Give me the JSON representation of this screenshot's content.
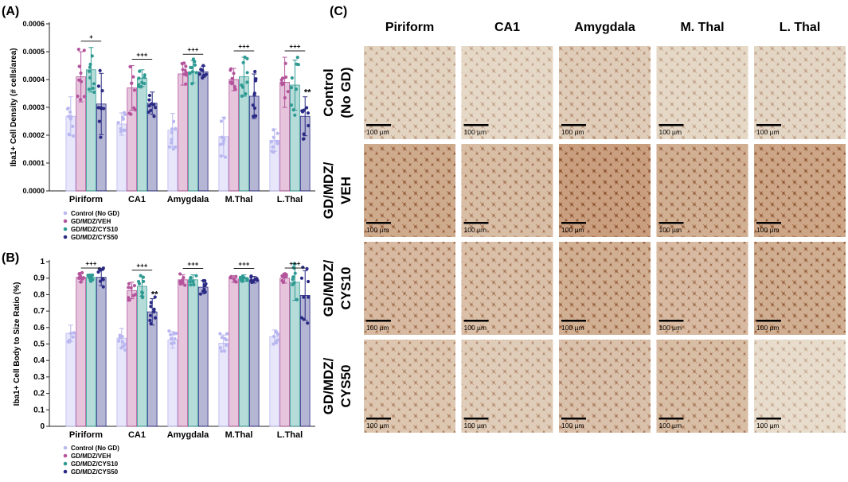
{
  "panel_labels": {
    "a": "(A)",
    "b": "(B)",
    "c": "(C)"
  },
  "colors": {
    "control": "#b9b7f0",
    "veh": "#b4559c",
    "cys10": "#2f9a93",
    "cys50": "#2a2a84"
  },
  "legend": [
    "Control (No GD)",
    "GD/MDZ/VEH",
    "GD/MDZ/CYS10",
    "GD/MDZ/CYS50"
  ],
  "chart_data": [
    {
      "type": "bar",
      "panel": "A",
      "ylabel": "Iba1+ Cell Density (# cells/area)",
      "xlabel": "",
      "categories": [
        "Piriform",
        "CA1",
        "Amygdala",
        "M.Thal",
        "L.Thal"
      ],
      "ylim": [
        0,
        0.0006
      ],
      "yticks": [
        0,
        0.0001,
        0.0002,
        0.0003,
        0.0004,
        0.0005,
        0.0006
      ],
      "ytick_labels": [
        "0.0000",
        "0.0001",
        "0.0002",
        "0.0003",
        "0.0004",
        "0.0005",
        "0.0006"
      ],
      "series": [
        {
          "name": "Control (No GD)",
          "values": [
            0.000268,
            0.00024,
            0.000218,
            0.000195,
            0.000182
          ],
          "errors": [
            7e-05,
            4e-05,
            6e-05,
            7e-05,
            4e-05
          ]
        },
        {
          "name": "GD/MDZ/VEH",
          "values": [
            0.00041,
            0.00037,
            0.00042,
            0.0004,
            0.00039
          ],
          "errors": [
            9e-05,
            8e-05,
            4e-05,
            4e-05,
            9e-05
          ]
        },
        {
          "name": "GD/MDZ/CYS10",
          "values": [
            0.000435,
            0.000405,
            0.000428,
            0.00041,
            0.00038
          ],
          "errors": [
            8e-05,
            3e-05,
            4e-05,
            7e-05,
            9e-05
          ]
        },
        {
          "name": "GD/MDZ/CYS50",
          "values": [
            0.000312,
            0.000315,
            0.000428,
            0.00034,
            0.000268
          ],
          "errors": [
            0.00011,
            4e-05,
            2e-05,
            8e-05,
            7e-05
          ]
        }
      ],
      "annotations": [
        {
          "category": "Piriform",
          "text": "+"
        },
        {
          "category": "CA1",
          "text": "+++"
        },
        {
          "category": "Amygdala",
          "text": "+++"
        },
        {
          "category": "M.Thal",
          "text": "+++"
        },
        {
          "category": "L.Thal",
          "text": "+++"
        },
        {
          "category": "L.Thal",
          "text": "**",
          "series": "GD/MDZ/CYS50"
        }
      ]
    },
    {
      "type": "bar",
      "panel": "B",
      "ylabel": "Iba1+ Cell Body to Size Ratio (%)",
      "xlabel": "",
      "categories": [
        "Piriform",
        "CA1",
        "Amygdala",
        "M.Thal",
        "L.Thal"
      ],
      "ylim": [
        0,
        1.0
      ],
      "yticks": [
        0,
        0.1,
        0.2,
        0.3,
        0.4,
        0.5,
        0.6,
        0.7,
        0.8,
        0.9,
        1.0
      ],
      "ytick_labels": [
        "0",
        "0.1",
        "0.2",
        "0.3",
        "0.4",
        "0.5",
        "0.6",
        "0.7",
        "0.8",
        "0.9",
        "1"
      ],
      "series": [
        {
          "name": "Control (No GD)",
          "values": [
            0.565,
            0.535,
            0.525,
            0.505,
            0.545
          ],
          "errors": [
            0.05,
            0.06,
            0.05,
            0.05,
            0.04
          ]
        },
        {
          "name": "GD/MDZ/VEH",
          "values": [
            0.905,
            0.825,
            0.89,
            0.895,
            0.9
          ],
          "errors": [
            0.03,
            0.05,
            0.03,
            0.02,
            0.03
          ]
        },
        {
          "name": "GD/MDZ/CYS10",
          "values": [
            0.905,
            0.85,
            0.89,
            0.9,
            0.875
          ],
          "errors": [
            0.02,
            0.06,
            0.03,
            0.02,
            0.11
          ]
        },
        {
          "name": "GD/MDZ/CYS50",
          "values": [
            0.905,
            0.695,
            0.845,
            0.89,
            0.795
          ],
          "errors": [
            0.05,
            0.08,
            0.04,
            0.02,
            0.15
          ]
        }
      ],
      "annotations": [
        {
          "category": "Piriform",
          "text": "+++"
        },
        {
          "category": "CA1",
          "text": "+++"
        },
        {
          "category": "CA1",
          "text": "**",
          "series": "GD/MDZ/CYS50"
        },
        {
          "category": "Amygdala",
          "text": "+++"
        },
        {
          "category": "M.Thal",
          "text": "+++"
        },
        {
          "category": "L.Thal",
          "text": "+++"
        }
      ]
    }
  ],
  "micrographs": {
    "columns": [
      "Piriform",
      "CA1",
      "Amygdala",
      "M. Thal",
      "L. Thal"
    ],
    "rows": [
      {
        "label": "Control (No GD)",
        "lines": [
          "Control",
          "(No GD)"
        ]
      },
      {
        "label": "GD/MDZ/VEH",
        "lines": [
          "GD/MDZ/",
          "VEH"
        ]
      },
      {
        "label": "GD/MDZ/CYS10",
        "lines": [
          "GD/MDZ/",
          "CYS10"
        ]
      },
      {
        "label": "GD/MDZ/CYS50",
        "lines": [
          "GD/MDZ/",
          "CYS50"
        ]
      }
    ],
    "scale_bar": "100 µm",
    "stain_density": [
      [
        0.22,
        0.15,
        0.3,
        0.16,
        0.18
      ],
      [
        0.75,
        0.5,
        0.9,
        0.7,
        0.82
      ],
      [
        0.55,
        0.48,
        0.7,
        0.55,
        0.72
      ],
      [
        0.38,
        0.3,
        0.45,
        0.5,
        0.1
      ]
    ],
    "stain_colors": {
      "tissue": "#ece4d6",
      "stain": "#a65a28"
    }
  }
}
